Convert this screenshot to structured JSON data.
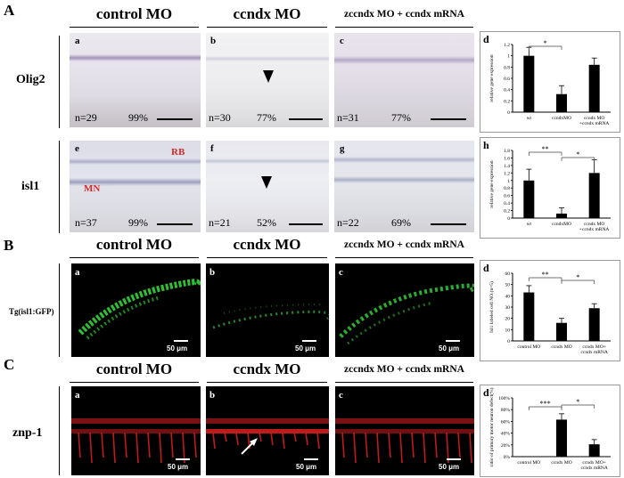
{
  "sectionA": {
    "letter": "A",
    "columns": [
      "control MO",
      "ccndx MO",
      "zccndx MO + ccndx mRNA"
    ],
    "rows": [
      {
        "label": "Olig2",
        "panels": [
          {
            "letter": "a",
            "n": "n=29",
            "pct": "99%"
          },
          {
            "letter": "b",
            "n": "n=30",
            "pct": "77%"
          },
          {
            "letter": "c",
            "n": "n=31",
            "pct": "77%"
          }
        ]
      },
      {
        "label": "isl1",
        "panels": [
          {
            "letter": "e",
            "n": "n=37",
            "pct": "99%"
          },
          {
            "letter": "f",
            "n": "n=21",
            "pct": "52%"
          },
          {
            "letter": "g",
            "n": "n=22",
            "pct": "69%"
          }
        ]
      }
    ],
    "annotations": {
      "rb": "RB",
      "mn": "MN"
    }
  },
  "sectionB": {
    "letter": "B",
    "columns": [
      "control MO",
      "ccndx MO",
      "zccndx MO + ccndx mRNA"
    ],
    "row_label": "Tg(isl1:GFP)",
    "panels": [
      {
        "letter": "a",
        "scale": "50 μm"
      },
      {
        "letter": "b",
        "scale": "50 μm"
      },
      {
        "letter": "c",
        "scale": "50 μm"
      }
    ]
  },
  "sectionC": {
    "letter": "C",
    "columns": [
      "control MO",
      "ccndx MO",
      "zccndx MO + ccndx mRNA"
    ],
    "row_label": "znp-1",
    "panels": [
      {
        "letter": "a",
        "scale": "50 μm"
      },
      {
        "letter": "b",
        "scale": "50 μm"
      },
      {
        "letter": "c",
        "scale": "50 μm"
      }
    ]
  },
  "colors": {
    "olig2_stain": "#8a78a8",
    "gfp": "#35d43a",
    "znp1": "#e02020",
    "annotation": "#d42a2a"
  },
  "chart_data": [
    {
      "panel": "d",
      "type": "bar",
      "ylabel": "relative gene expression",
      "categories": [
        "wt",
        "ccndxMO",
        "ccndx MO +ccndx mRNA"
      ],
      "values": [
        1.0,
        0.32,
        0.84
      ],
      "errors": [
        0.15,
        0.15,
        0.12
      ],
      "ylim": [
        0,
        1.2
      ],
      "yticks": [
        "0",
        "0.2",
        "0.4",
        "0.6",
        "0.8",
        "1",
        "1.2"
      ],
      "significance": [
        {
          "from": 0,
          "to": 1,
          "label": "*"
        }
      ]
    },
    {
      "panel": "h",
      "type": "bar",
      "ylabel": "relative gene expression",
      "categories": [
        "wt",
        "ccndxMO",
        "ccndx MO +ccndx mRNA"
      ],
      "values": [
        1.0,
        0.12,
        1.2
      ],
      "errors": [
        0.3,
        0.15,
        0.35
      ],
      "ylim": [
        0,
        1.8
      ],
      "yticks": [
        "0",
        "0.2",
        "0.4",
        "0.6",
        "0.8",
        "1",
        "1.2",
        "1.4",
        "1.6",
        "1.8"
      ],
      "significance": [
        {
          "from": 0,
          "to": 1,
          "label": "**"
        },
        {
          "from": 1,
          "to": 2,
          "label": "*"
        }
      ]
    },
    {
      "panel": "d",
      "type": "bar",
      "ylabel": "Isl1 labeled cell NO.(n=5)",
      "categories": [
        "control MO",
        "ccndx MO",
        "ccndx MO+ ccndx mRNA"
      ],
      "values": [
        43,
        16,
        29
      ],
      "errors": [
        6,
        4,
        4
      ],
      "ylim": [
        0,
        60
      ],
      "yticks": [
        "0",
        "10",
        "20",
        "30",
        "40",
        "50",
        "60"
      ],
      "significance": [
        {
          "from": 0,
          "to": 1,
          "label": "**"
        },
        {
          "from": 1,
          "to": 2,
          "label": "*"
        }
      ]
    },
    {
      "panel": "d",
      "type": "bar",
      "ylabel": "ratio of primary motor neuron defect(%)",
      "categories": [
        "control MO",
        "ccndx MO",
        "ccndx MO+ ccndx mRNA"
      ],
      "values": [
        0,
        63,
        21
      ],
      "errors": [
        0,
        10,
        8
      ],
      "ylim": [
        0,
        100
      ],
      "yticks": [
        "0%",
        "20%",
        "40%",
        "60%",
        "80%",
        "100%"
      ],
      "significance": [
        {
          "from": 0,
          "to": 1,
          "label": "***"
        },
        {
          "from": 1,
          "to": 2,
          "label": "*"
        }
      ]
    }
  ]
}
